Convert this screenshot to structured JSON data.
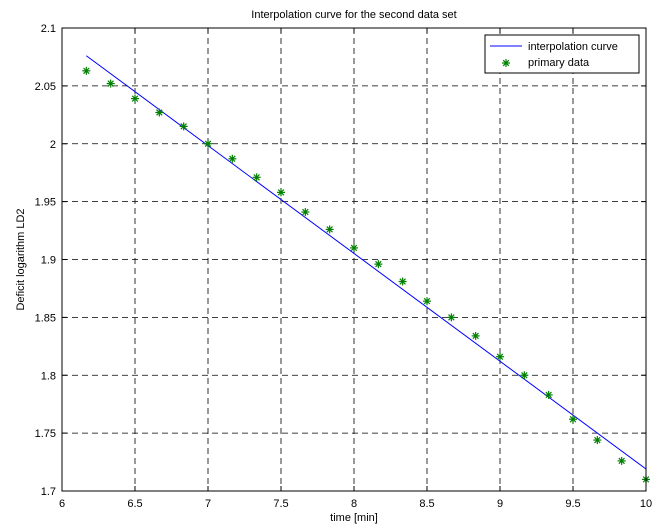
{
  "chart_data": {
    "type": "line",
    "title": "Interpolation curve for the second data set",
    "xlabel": "time [min]",
    "ylabel": "Deficit logarithm LD2",
    "xlim": [
      6,
      10
    ],
    "ylim": [
      1.7,
      2.1
    ],
    "xticks": [
      "6",
      "6.5",
      "7",
      "7.5",
      "8",
      "8.5",
      "9",
      "9.5",
      "10"
    ],
    "yticks": [
      "1.7",
      "1.75",
      "1.8",
      "1.85",
      "1.9",
      "1.95",
      "2",
      "2.05",
      "2.1"
    ],
    "grid": true,
    "legend_position": "top-right",
    "series": [
      {
        "name": "interpolation curve",
        "style": "line",
        "color": "#0000ff",
        "x": [
          6.1667,
          10.0
        ],
        "y": [
          2.076,
          1.719
        ]
      },
      {
        "name": "primary data",
        "style": "markers",
        "marker": "asterisk",
        "color": "#008000",
        "x": [
          6.1667,
          6.3333,
          6.5,
          6.6667,
          6.8333,
          7.0,
          7.1667,
          7.3333,
          7.5,
          7.6667,
          7.8333,
          8.0,
          8.1667,
          8.3333,
          8.5,
          8.6667,
          8.8333,
          9.0,
          9.1667,
          9.3333,
          9.5,
          9.6667,
          9.8333,
          10.0
        ],
        "y": [
          2.063,
          2.052,
          2.039,
          2.027,
          2.015,
          2.0,
          1.987,
          1.971,
          1.958,
          1.941,
          1.926,
          1.91,
          1.896,
          1.881,
          1.864,
          1.85,
          1.834,
          1.816,
          1.8,
          1.783,
          1.762,
          1.744,
          1.726,
          1.71
        ]
      }
    ]
  }
}
